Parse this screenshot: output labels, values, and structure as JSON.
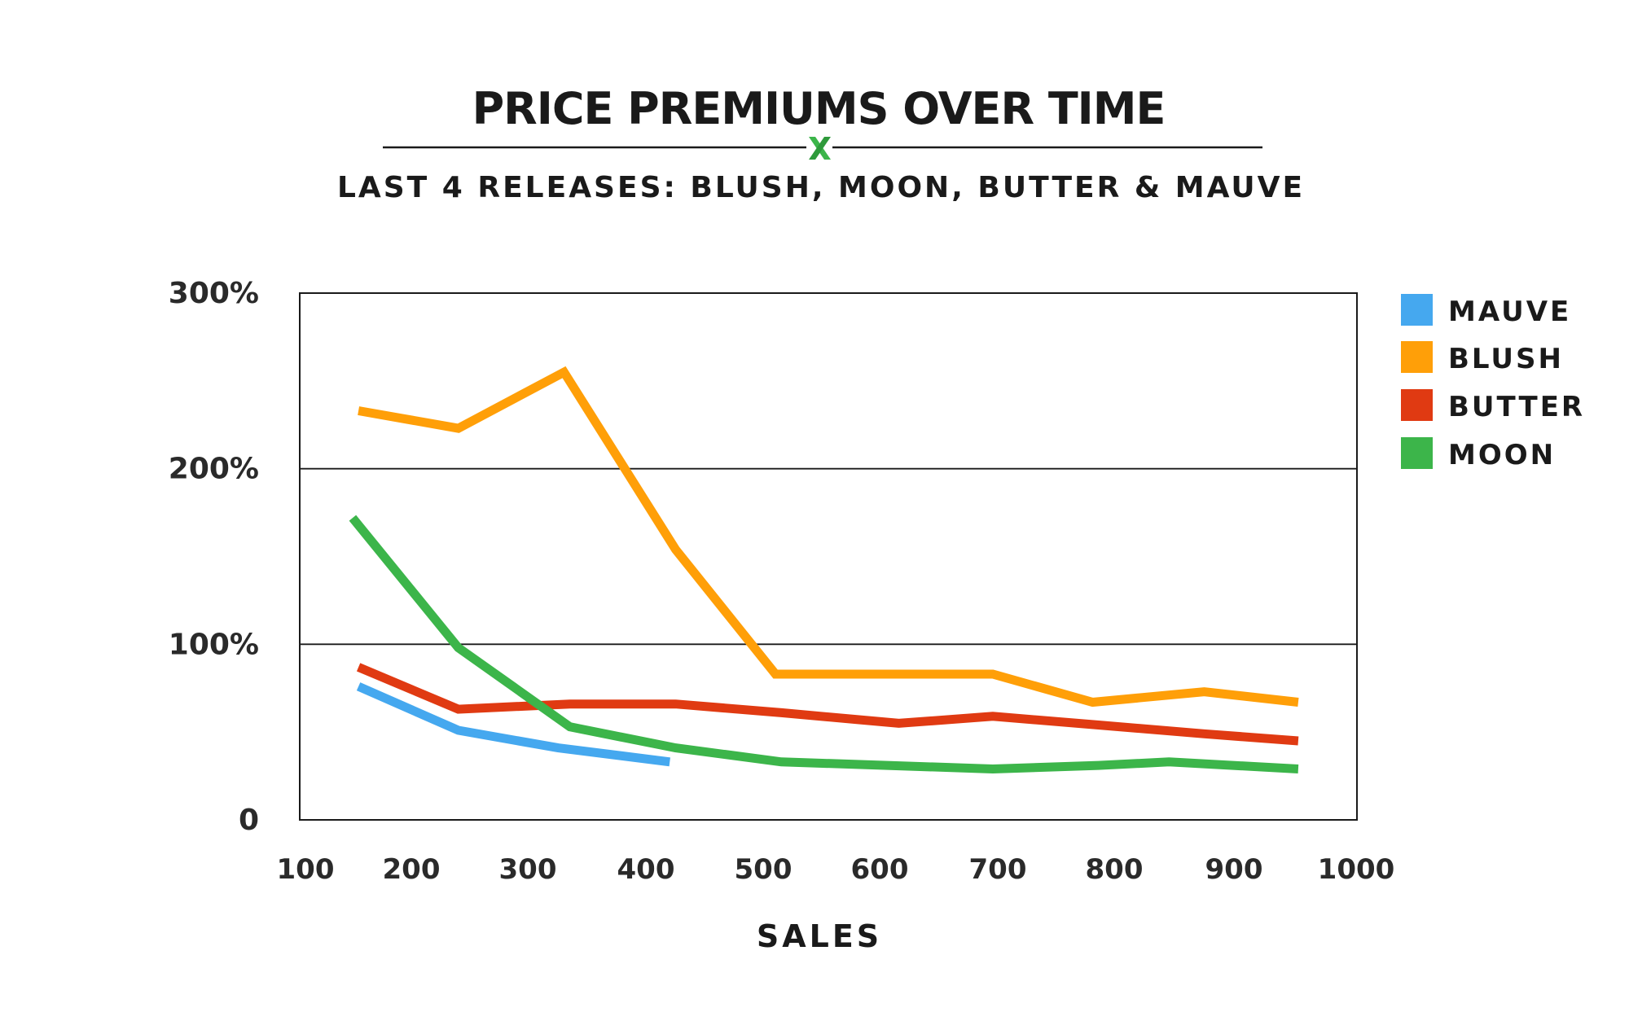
{
  "chart_data": {
    "type": "line",
    "title": "PRICE PREMIUMS OVER TIME",
    "subtitle": "LAST 4 RELEASES: BLUSH, MOON, BUTTER & MAUVE",
    "xlabel": "SALES",
    "ylabel": "",
    "xlim": [
      100,
      1000
    ],
    "ylim": [
      0,
      300
    ],
    "x_ticks": [
      "100",
      "200",
      "300",
      "400",
      "500",
      "600",
      "700",
      "800",
      "900",
      "1000"
    ],
    "y_ticks": [
      "0",
      "100%",
      "200%",
      "300%"
    ],
    "grid": "horizontal",
    "legend_position": "top-right",
    "series": [
      {
        "name": "MAUVE",
        "color": "#45a8ef",
        "points": [
          [
            150,
            76
          ],
          [
            235,
            51
          ],
          [
            320,
            41
          ],
          [
            415,
            33
          ]
        ]
      },
      {
        "name": "BLUSH",
        "color": "#ff9f08",
        "points": [
          [
            150,
            233
          ],
          [
            235,
            223
          ],
          [
            325,
            255
          ],
          [
            420,
            154
          ],
          [
            505,
            83
          ],
          [
            600,
            83
          ],
          [
            690,
            83
          ],
          [
            775,
            67
          ],
          [
            870,
            73
          ],
          [
            950,
            67
          ]
        ]
      },
      {
        "name": "BUTTER",
        "color": "#e03a12",
        "points": [
          [
            150,
            87
          ],
          [
            235,
            63
          ],
          [
            330,
            66
          ],
          [
            420,
            66
          ],
          [
            510,
            61
          ],
          [
            610,
            55
          ],
          [
            690,
            59
          ],
          [
            780,
            54
          ],
          [
            870,
            49
          ],
          [
            950,
            45
          ]
        ]
      },
      {
        "name": "MOON",
        "color": "#3cb54a",
        "points": [
          [
            145,
            172
          ],
          [
            235,
            98
          ],
          [
            330,
            53
          ],
          [
            420,
            41
          ],
          [
            510,
            33
          ],
          [
            600,
            31
          ],
          [
            690,
            29
          ],
          [
            780,
            31
          ],
          [
            840,
            33
          ],
          [
            950,
            29
          ]
        ]
      }
    ]
  },
  "logo": {
    "mark": "x",
    "color": "#3cb54a"
  }
}
